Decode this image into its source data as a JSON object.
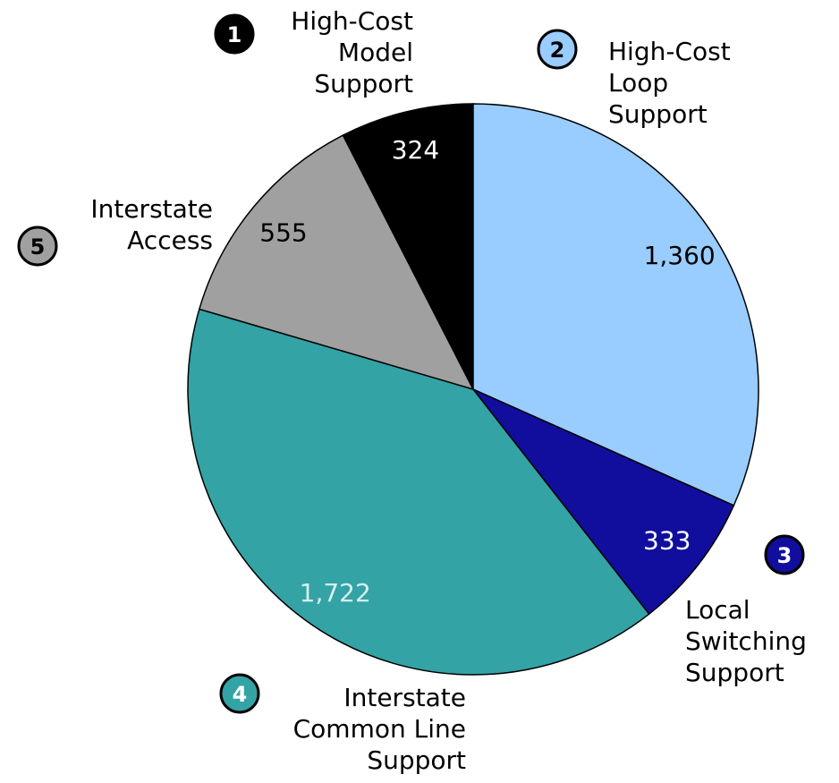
{
  "chart_data": {
    "type": "pie",
    "categories": [
      "High-Cost Model Support",
      "High-Cost Loop Support",
      "Local Switching Support",
      "Interstate Common Line Support",
      "Interstate Access"
    ],
    "markers": [
      "1",
      "2",
      "3",
      "4",
      "5"
    ],
    "values": [
      324,
      1360,
      333,
      1722,
      555
    ],
    "value_labels": [
      "324",
      "1,360",
      "333",
      "1,722",
      "555"
    ],
    "colors": [
      "#000000",
      "#99ccff",
      "#110e9e",
      "#33a3a5",
      "#a0a0a0"
    ]
  }
}
